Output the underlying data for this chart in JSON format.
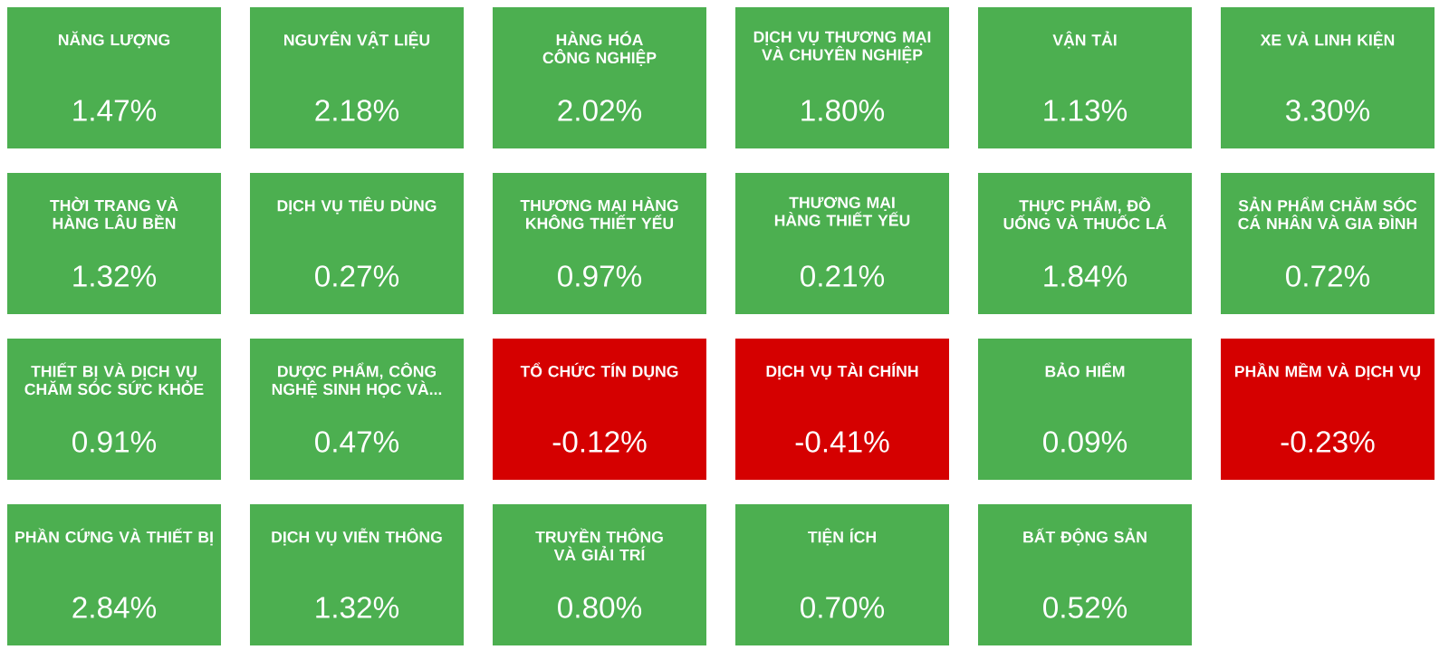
{
  "chart_data": {
    "type": "other",
    "categories": [
      "NĂNG LƯỢNG",
      "NGUYÊN VẬT LIỆU",
      "HÀNG HÓA CÔNG NGHIỆP",
      "DỊCH VỤ THƯƠNG MẠI VÀ CHUYÊN NGHIỆP",
      "VẬN TẢI",
      "XE VÀ LINH KIỆN",
      "THỜI TRANG VÀ HÀNG LÂU BỀN",
      "DỊCH VỤ TIÊU DÙNG",
      "THƯƠNG MẠI HÀNG KHÔNG THIẾT YẾU",
      "THƯƠNG MẠI HÀNG THIẾT YẾU",
      "THỰC PHẨM, ĐỒ UỐNG VÀ THUỐC LÁ",
      "SẢN PHẨM CHĂM SÓC CÁ NHÂN VÀ GIA ĐÌNH",
      "THIẾT BỊ VÀ DỊCH VỤ CHĂM SÓC SỨC KHỎE",
      "DƯỢC PHẨM, CÔNG NGHỆ SINH HỌC VÀ...",
      "TỔ CHỨC TÍN DỤNG",
      "DỊCH VỤ TÀI CHÍNH",
      "BẢO HIỂM",
      "PHẦN MỀM VÀ DỊCH VỤ",
      "PHẦN CỨNG VÀ THIẾT BỊ",
      "DỊCH VỤ VIỄN THÔNG",
      "TRUYỀN THÔNG VÀ GIẢI TRÍ",
      "TIỆN ÍCH",
      "BẤT ĐỘNG SẢN"
    ],
    "values": [
      1.47,
      2.18,
      2.02,
      1.8,
      1.13,
      3.3,
      1.32,
      0.27,
      0.97,
      0.21,
      1.84,
      0.72,
      0.91,
      0.47,
      -0.12,
      -0.41,
      0.09,
      -0.23,
      2.84,
      1.32,
      0.8,
      0.7,
      0.52
    ],
    "value_labels": [
      "1.47%",
      "2.18%",
      "2.02%",
      "1.80%",
      "1.13%",
      "3.30%",
      "1.32%",
      "0.27%",
      "0.97%",
      "0.21%",
      "1.84%",
      "0.72%",
      "0.91%",
      "0.47%",
      "-0.12%",
      "-0.41%",
      "0.09%",
      "-0.23%",
      "2.84%",
      "1.32%",
      "0.80%",
      "0.70%",
      "0.52%"
    ],
    "colors": [
      "#4caf50",
      "#4caf50",
      "#4caf50",
      "#4caf50",
      "#4caf50",
      "#4caf50",
      "#4caf50",
      "#4caf50",
      "#4caf50",
      "#4caf50",
      "#4caf50",
      "#4caf50",
      "#4caf50",
      "#4caf50",
      "#d50000",
      "#d50000",
      "#4caf50",
      "#d50000",
      "#4caf50",
      "#4caf50",
      "#4caf50",
      "#4caf50",
      "#4caf50"
    ]
  }
}
